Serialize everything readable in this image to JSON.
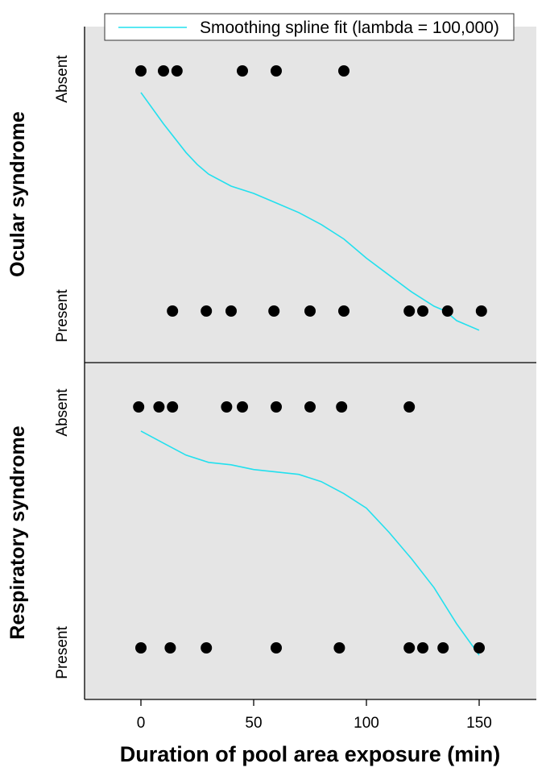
{
  "chart_data": {
    "type": "scatter",
    "xlabel": "Duration of pool area exposure (min)",
    "xlim": [
      -25,
      175
    ],
    "x_ticks": [
      0,
      50,
      100,
      150
    ],
    "y_categories": [
      "Present",
      "Absent"
    ],
    "legend": {
      "entry": "Smoothing spline fit (lambda = 100,000)",
      "placement": "top-right",
      "line_color": "#22e0ee"
    },
    "point_color": "#000000",
    "panel_background": "#e5e5e5",
    "panels": [
      {
        "ylabel": "Ocular syndrome",
        "absent_points": [
          0,
          10,
          16,
          45,
          60,
          90
        ],
        "present_points": [
          14,
          29,
          40,
          59,
          75,
          90,
          119,
          125,
          136,
          151
        ],
        "spline": {
          "x": [
            0,
            10,
            20,
            25,
            30,
            40,
            50,
            60,
            70,
            80,
            90,
            100,
            110,
            120,
            130,
            135,
            140,
            150
          ],
          "y": [
            0.91,
            0.78,
            0.66,
            0.61,
            0.57,
            0.52,
            0.49,
            0.45,
            0.41,
            0.36,
            0.3,
            0.22,
            0.15,
            0.08,
            0.02,
            0.0,
            -0.04,
            -0.08
          ]
        }
      },
      {
        "ylabel": "Respiratory syndrome",
        "absent_points": [
          -1,
          8,
          14,
          38,
          45,
          60,
          75,
          89,
          119
        ],
        "present_points": [
          0,
          13,
          29,
          60,
          88,
          119,
          125,
          134,
          150
        ],
        "spline": {
          "x": [
            0,
            10,
            20,
            30,
            40,
            50,
            60,
            70,
            80,
            90,
            100,
            110,
            120,
            130,
            140,
            150
          ],
          "y": [
            0.9,
            0.85,
            0.8,
            0.77,
            0.76,
            0.74,
            0.73,
            0.72,
            0.69,
            0.64,
            0.58,
            0.48,
            0.37,
            0.25,
            0.1,
            -0.03
          ]
        }
      }
    ]
  }
}
